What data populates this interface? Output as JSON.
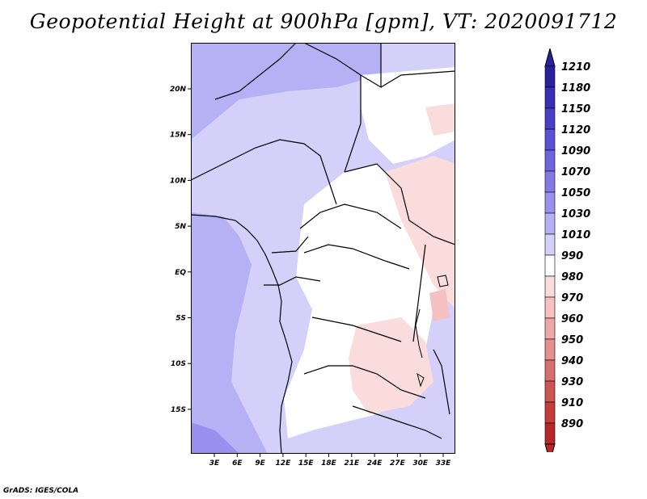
{
  "title": "Geopotential Height at 900hPa [gpm], VT: 2020091712",
  "footer": "GrADS: IGES/COLA",
  "map": {
    "lon_labels": [
      "3E",
      "6E",
      "9E",
      "12E",
      "15E",
      "18E",
      "21E",
      "24E",
      "27E",
      "30E",
      "33E"
    ],
    "lat_labels": [
      "20N",
      "15N",
      "10N",
      "5N",
      "EQ",
      "5S",
      "10S",
      "15S"
    ]
  },
  "colorbar": {
    "labels": [
      "1210",
      "1180",
      "1150",
      "1120",
      "1090",
      "1070",
      "1050",
      "1030",
      "1010",
      "990",
      "980",
      "970",
      "960",
      "950",
      "940",
      "930",
      "910",
      "890"
    ],
    "colors": [
      "#2a1f9c",
      "#3a2fb4",
      "#4a40c8",
      "#5a50d4",
      "#6e64de",
      "#8478e6",
      "#9a90ee",
      "#b6b0f5",
      "#d4d0fa",
      "#ffffff",
      "#fadcdc",
      "#f4c0c0",
      "#eea8a8",
      "#e49090",
      "#d87070",
      "#ce5454",
      "#c43c3c",
      "#b82828"
    ],
    "top_arrow_color": "#2a1f9c",
    "bottom_arrow_color": "#b82828"
  }
}
